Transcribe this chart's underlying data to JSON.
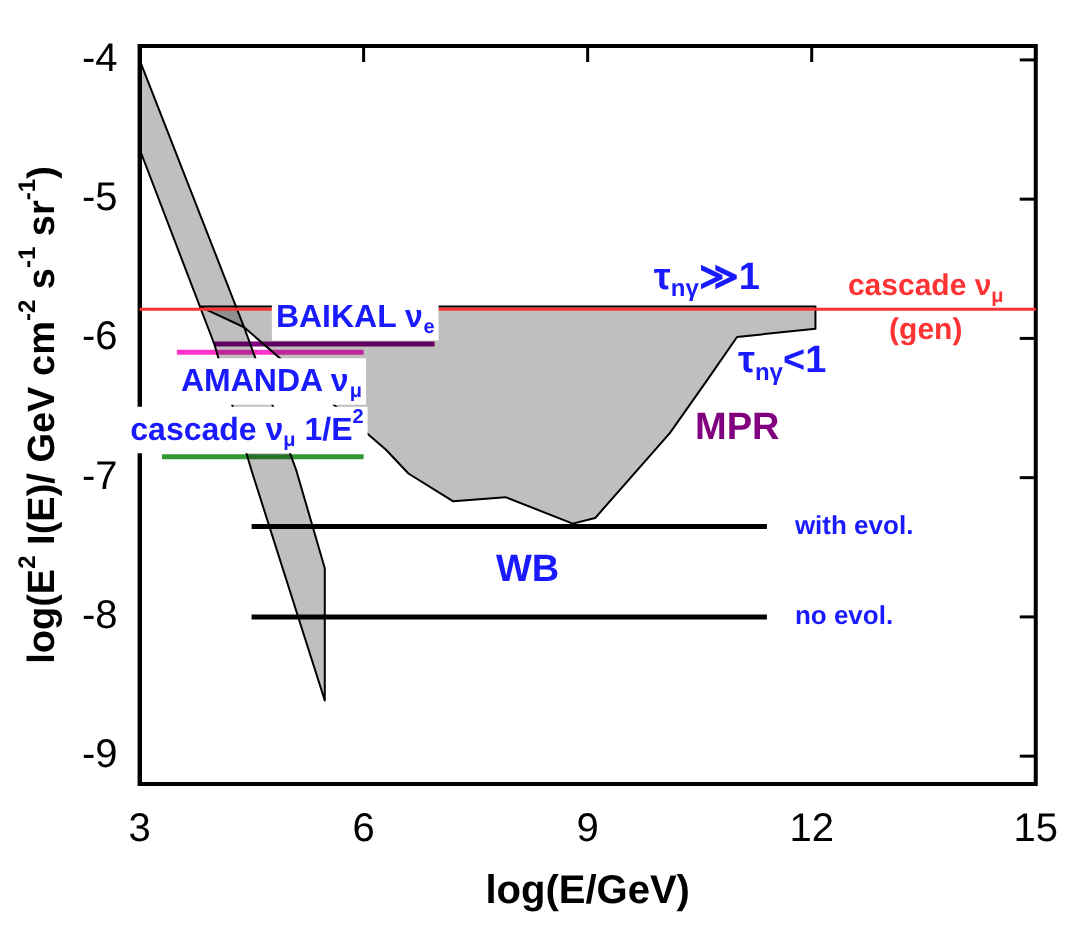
{
  "chart_data": {
    "type": "line",
    "xlabel": "log(E/GeV)",
    "ylabel": "log(E$^{2}$ I(E)/ GeV cm$^{-2}$ s$^{-1}$ sr$^{-1}$)",
    "xlim": [
      3,
      15
    ],
    "xticks": [
      3,
      6,
      9,
      12,
      15
    ],
    "ylim": [
      -9.2,
      -3.9
    ],
    "yticks": [
      -4,
      -5,
      -6,
      -7,
      -8,
      -9
    ],
    "grid": false,
    "legend": false,
    "series": [
      {
        "type": "area",
        "color": "#000000",
        "x": [
          3,
          4.4,
          5.1,
          5.48,
          5.48,
          4.5,
          4.0,
          3
        ],
        "values": [
          -4.0,
          -5.92,
          -6.95,
          -7.65,
          -8.6,
          -6.95,
          -6.04,
          -4.64
        ]
      },
      {
        "type": "area",
        "color": "#000000",
        "x": [
          3.8,
          12.05,
          12.05,
          11.0,
          10.6,
          10.1,
          9.1,
          8.8,
          7.9,
          7.2,
          6.6,
          6.3,
          4.4,
          3.8
        ],
        "values": [
          -5.77,
          -5.77,
          -5.93,
          -5.99,
          -6.3,
          -6.68,
          -7.29,
          -7.33,
          -7.14,
          -7.17,
          -6.97,
          -6.8,
          -5.92,
          -5.77
        ]
      },
      {
        "type": "line",
        "name": "BAIKAL ν$_{e}$",
        "color": "#800080",
        "x": [
          4.0,
          6.95
        ],
        "values": [
          -6.04,
          -6.04
        ]
      },
      {
        "type": "line",
        "name": "AMANDA ν$_{μ}$",
        "color": "#ff33cc",
        "x": [
          3.5,
          6.0
        ],
        "values": [
          -6.1,
          -6.1
        ]
      },
      {
        "type": "line",
        "name": "cascade ν$_{μ}$ 1/E$^{2}$",
        "color": "#339933",
        "x": [
          3.3,
          6.0
        ],
        "values": [
          -6.85,
          -6.85
        ]
      },
      {
        "type": "line",
        "name": "with evol.",
        "color": "#000000",
        "x": [
          4.5,
          11.4
        ],
        "values": [
          -7.35,
          -7.35
        ]
      },
      {
        "type": "line",
        "name": "no evol.",
        "color": "#000000",
        "x": [
          4.5,
          11.4
        ],
        "values": [
          -8.0,
          -8.0
        ]
      }
    ],
    "ref_lines": [
      {
        "axis": "y",
        "value": -5.79,
        "label": "cascade ν$_{μ}$\n(gen)",
        "color": "#ff3333"
      }
    ],
    "annotations": [
      "τ$_{nγ}$≫1",
      "τ$_{nγ}$<1",
      "MPR",
      "WB"
    ]
  }
}
